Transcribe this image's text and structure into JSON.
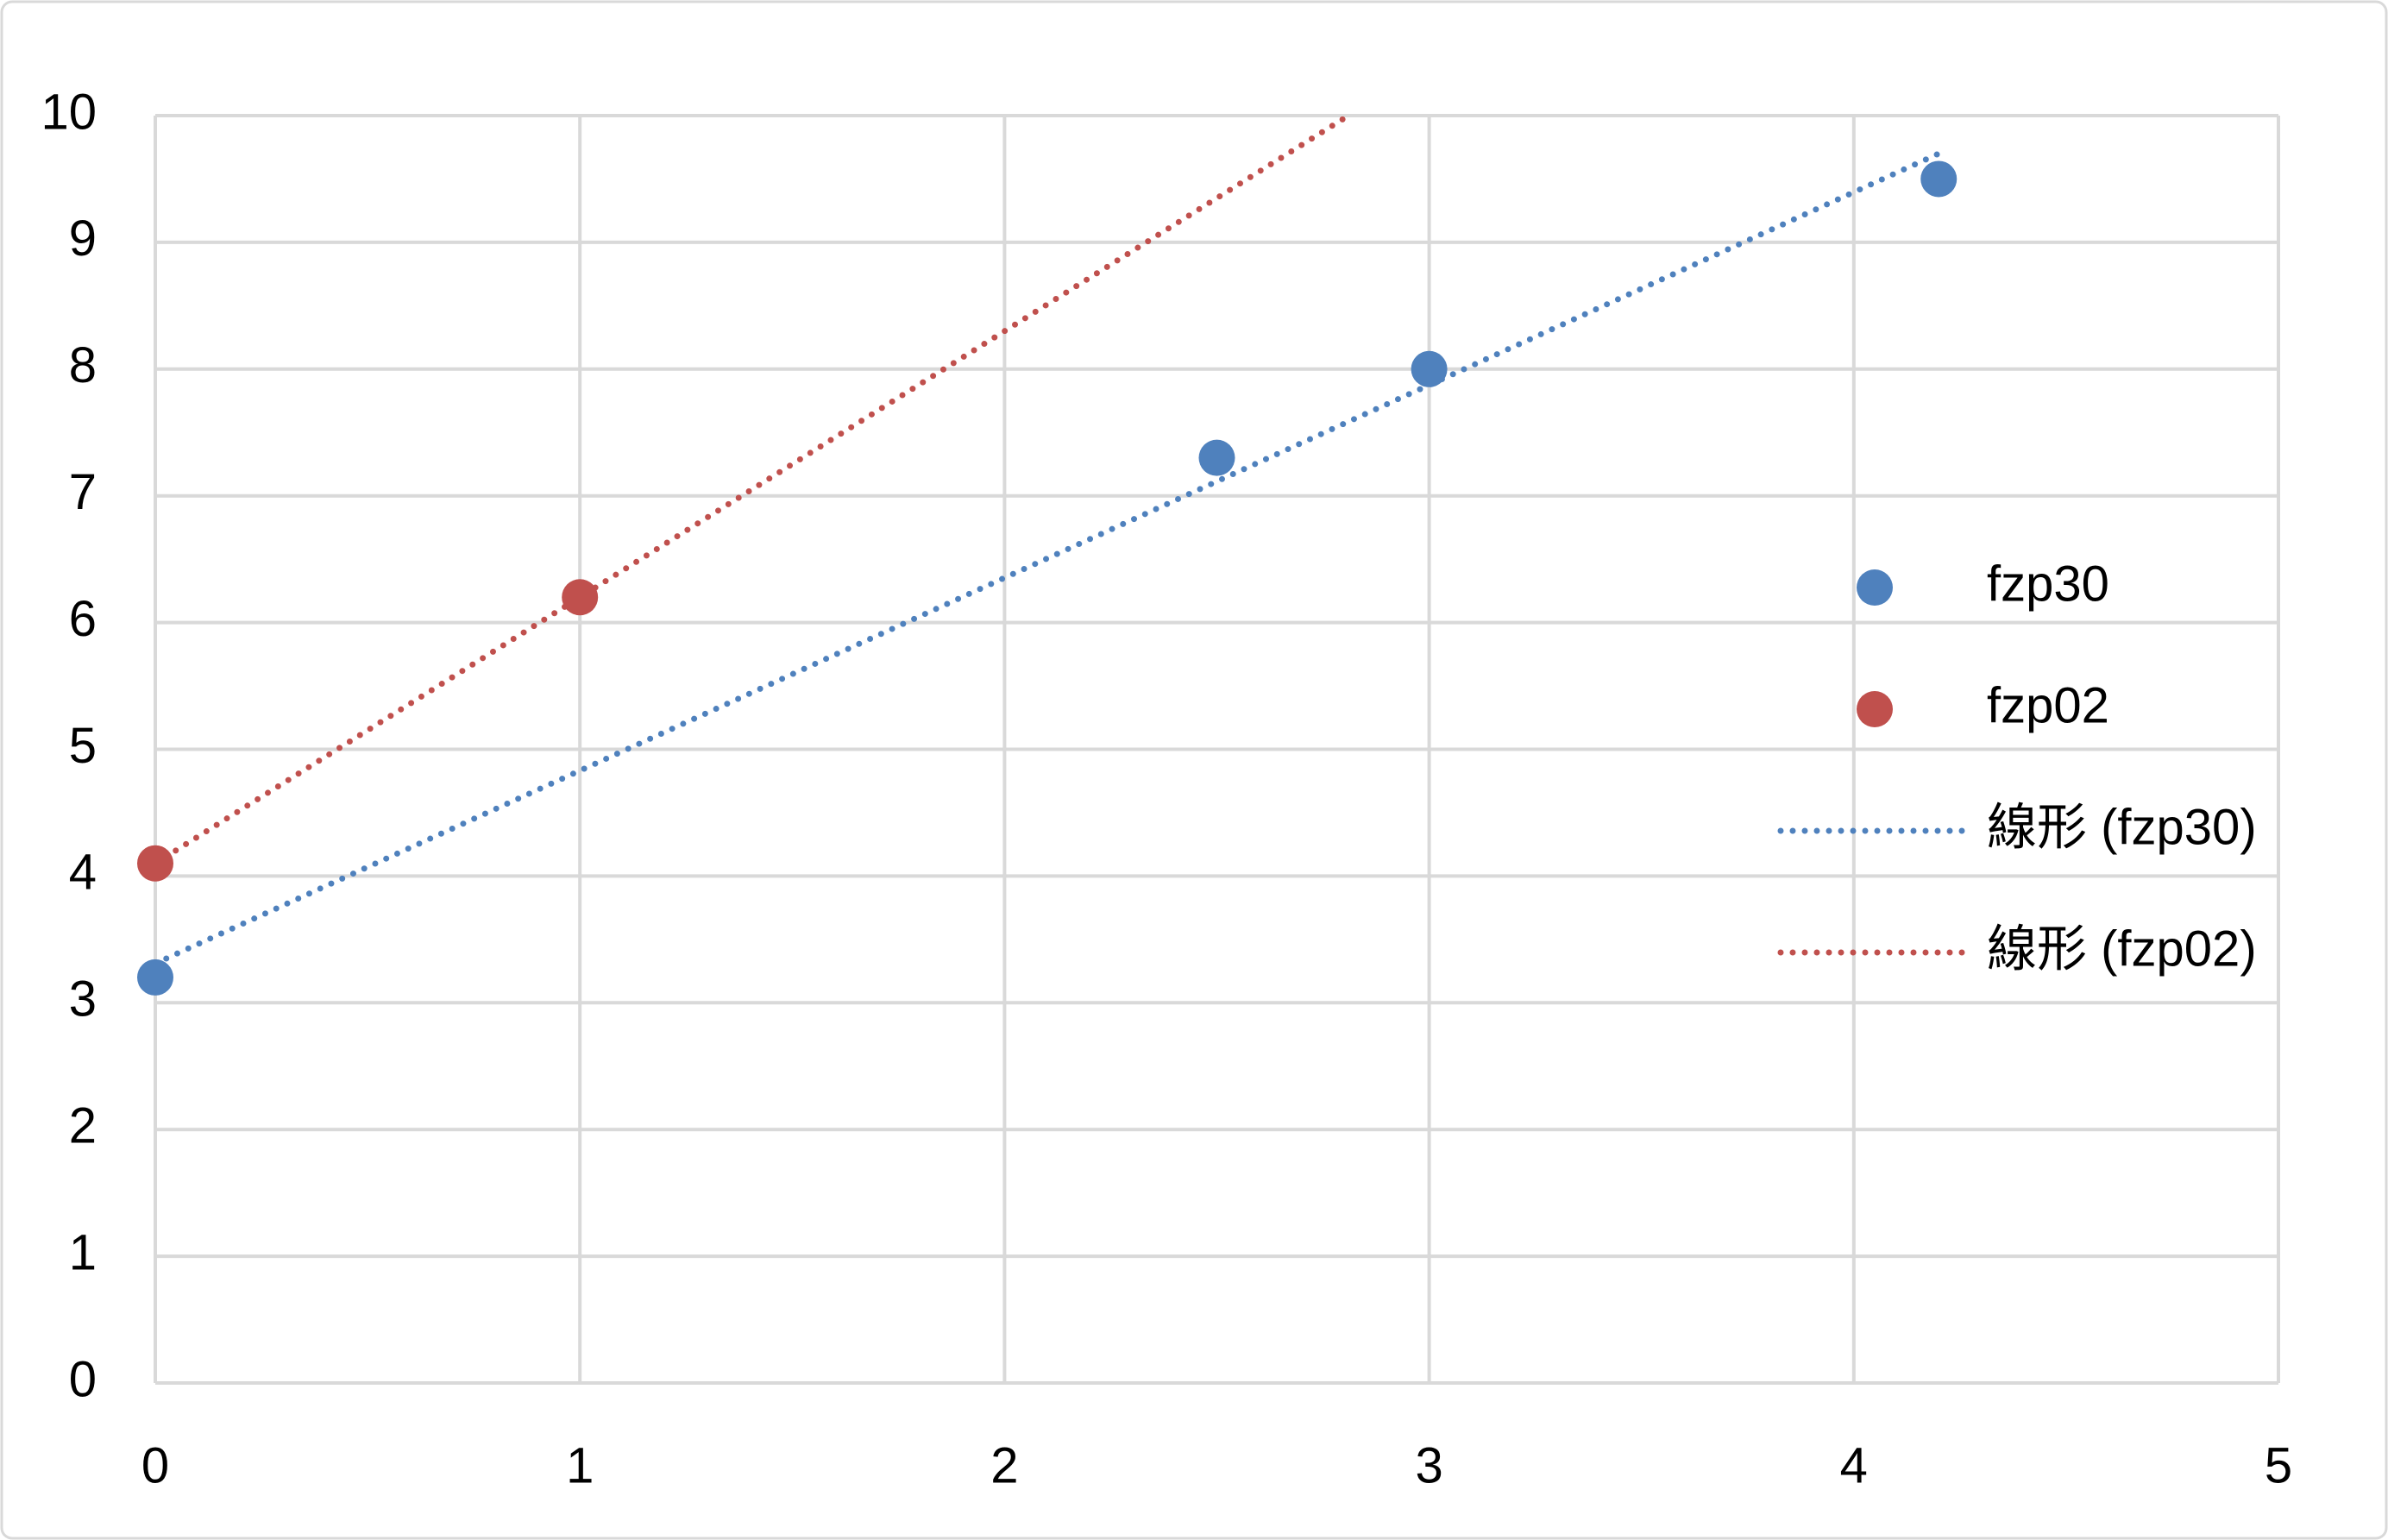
{
  "chart_data": {
    "type": "scatter",
    "series": [
      {
        "name": "fzp30",
        "color": "#4f81bd",
        "x": [
          0,
          2.5,
          3,
          4.2
        ],
        "values": [
          3.2,
          7.3,
          8,
          9.5
        ]
      },
      {
        "name": "fzp02",
        "color": "#c0504d",
        "x": [
          0,
          1
        ],
        "values": [
          4.1,
          6.2
        ]
      }
    ],
    "trendlines": [
      {
        "name": "線形 (fzp30)",
        "color": "#4f81bd",
        "x": [
          0,
          4.2
        ],
        "values": [
          3.31,
          9.7
        ]
      },
      {
        "name": "線形 (fzp02)",
        "color": "#c0504d",
        "x": [
          0,
          2.81
        ],
        "values": [
          4.1,
          10
        ]
      }
    ],
    "xlim": [
      0,
      5
    ],
    "xticks": [
      0,
      1,
      2,
      3,
      4,
      5
    ],
    "ylim": [
      0,
      10
    ],
    "yticks": [
      0,
      1,
      2,
      3,
      4,
      5,
      6,
      7,
      8,
      9,
      10
    ],
    "grid": true,
    "legend": "right"
  }
}
